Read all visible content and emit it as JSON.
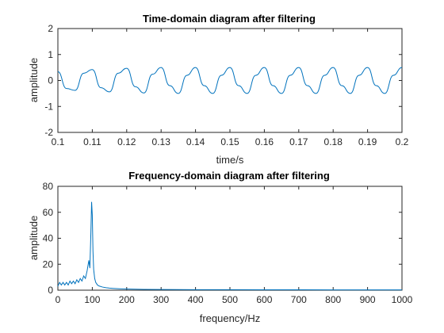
{
  "figure_bg": "#ffffff",
  "chart_data": [
    {
      "type": "line",
      "title": "Time-domain diagram after filtering",
      "xlabel": "time/s",
      "ylabel": "amplitude",
      "xlim": [
        0.1,
        0.2
      ],
      "ylim": [
        -2,
        2
      ],
      "xticks": [
        0.1,
        0.11,
        0.12,
        0.13,
        0.14,
        0.15,
        0.16,
        0.17,
        0.18,
        0.19,
        0.2
      ],
      "xtick_labels": [
        "0.1",
        "0.11",
        "0.12",
        "0.13",
        "0.14",
        "0.15",
        "0.16",
        "0.17",
        "0.18",
        "0.19",
        "0.2"
      ],
      "yticks": [
        -2,
        -1,
        0,
        1,
        2
      ],
      "ytick_labels": [
        "-2",
        "-1",
        "0",
        "1",
        "2"
      ],
      "grid": false,
      "series": [
        {
          "color": "#0072BD",
          "x": [
            0.1,
            0.1025,
            0.105,
            0.1075,
            0.11,
            0.1125,
            0.115,
            0.1175,
            0.12,
            0.1225,
            0.125,
            0.1275,
            0.13,
            0.1325,
            0.135,
            0.1375,
            0.14,
            0.1425,
            0.145,
            0.1475,
            0.15,
            0.1525,
            0.155,
            0.1575,
            0.16,
            0.1625,
            0.165,
            0.1675,
            0.17,
            0.1725,
            0.175,
            0.1775,
            0.18,
            0.1825,
            0.185,
            0.1875,
            0.19,
            0.1925,
            0.195,
            0.1975,
            0.2
          ],
          "y": [
            0.34,
            -0.31,
            -0.38,
            0.28,
            0.42,
            -0.28,
            -0.44,
            0.28,
            0.47,
            -0.24,
            -0.48,
            0.24,
            0.5,
            -0.2,
            -0.5,
            0.2,
            0.5,
            -0.2,
            -0.5,
            0.2,
            0.5,
            -0.2,
            -0.5,
            0.2,
            0.5,
            -0.2,
            -0.5,
            0.2,
            0.5,
            -0.2,
            -0.5,
            0.2,
            0.5,
            -0.2,
            -0.5,
            0.2,
            0.5,
            -0.2,
            -0.5,
            0.2,
            0.5
          ]
        }
      ]
    },
    {
      "type": "line",
      "title": "Frequency-domain diagram after filtering",
      "xlabel": "frequency/Hz",
      "ylabel": "amplitude",
      "xlim": [
        0,
        1000
      ],
      "ylim": [
        0,
        80
      ],
      "xticks": [
        0,
        100,
        200,
        300,
        400,
        500,
        600,
        700,
        800,
        900,
        1000
      ],
      "xtick_labels": [
        "0",
        "100",
        "200",
        "300",
        "400",
        "500",
        "600",
        "700",
        "800",
        "900",
        "1000"
      ],
      "yticks": [
        0,
        20,
        40,
        60,
        80
      ],
      "ytick_labels": [
        "0",
        "20",
        "40",
        "60",
        "80"
      ],
      "grid": false,
      "series": [
        {
          "color": "#0072BD",
          "x": [
            0,
            5,
            10,
            15,
            20,
            25,
            30,
            35,
            40,
            45,
            50,
            55,
            60,
            65,
            70,
            75,
            80,
            85,
            90,
            93,
            96,
            98,
            100,
            102,
            104,
            107,
            110,
            115,
            120,
            130,
            140,
            150,
            160,
            180,
            200,
            250,
            300,
            400,
            500,
            600,
            700,
            800,
            900,
            1000
          ],
          "y": [
            3,
            6,
            4,
            6,
            4,
            6,
            4,
            7,
            5,
            7,
            5,
            8,
            6,
            9,
            7,
            11,
            9,
            15,
            23,
            17,
            45,
            68,
            58,
            30,
            16,
            9,
            6,
            4,
            3.2,
            2.4,
            1.9,
            1.6,
            1.4,
            1.1,
            0.9,
            0.6,
            0.5,
            0.4,
            0.35,
            0.3,
            0.28,
            0.26,
            0.25,
            0.25
          ]
        }
      ]
    }
  ]
}
